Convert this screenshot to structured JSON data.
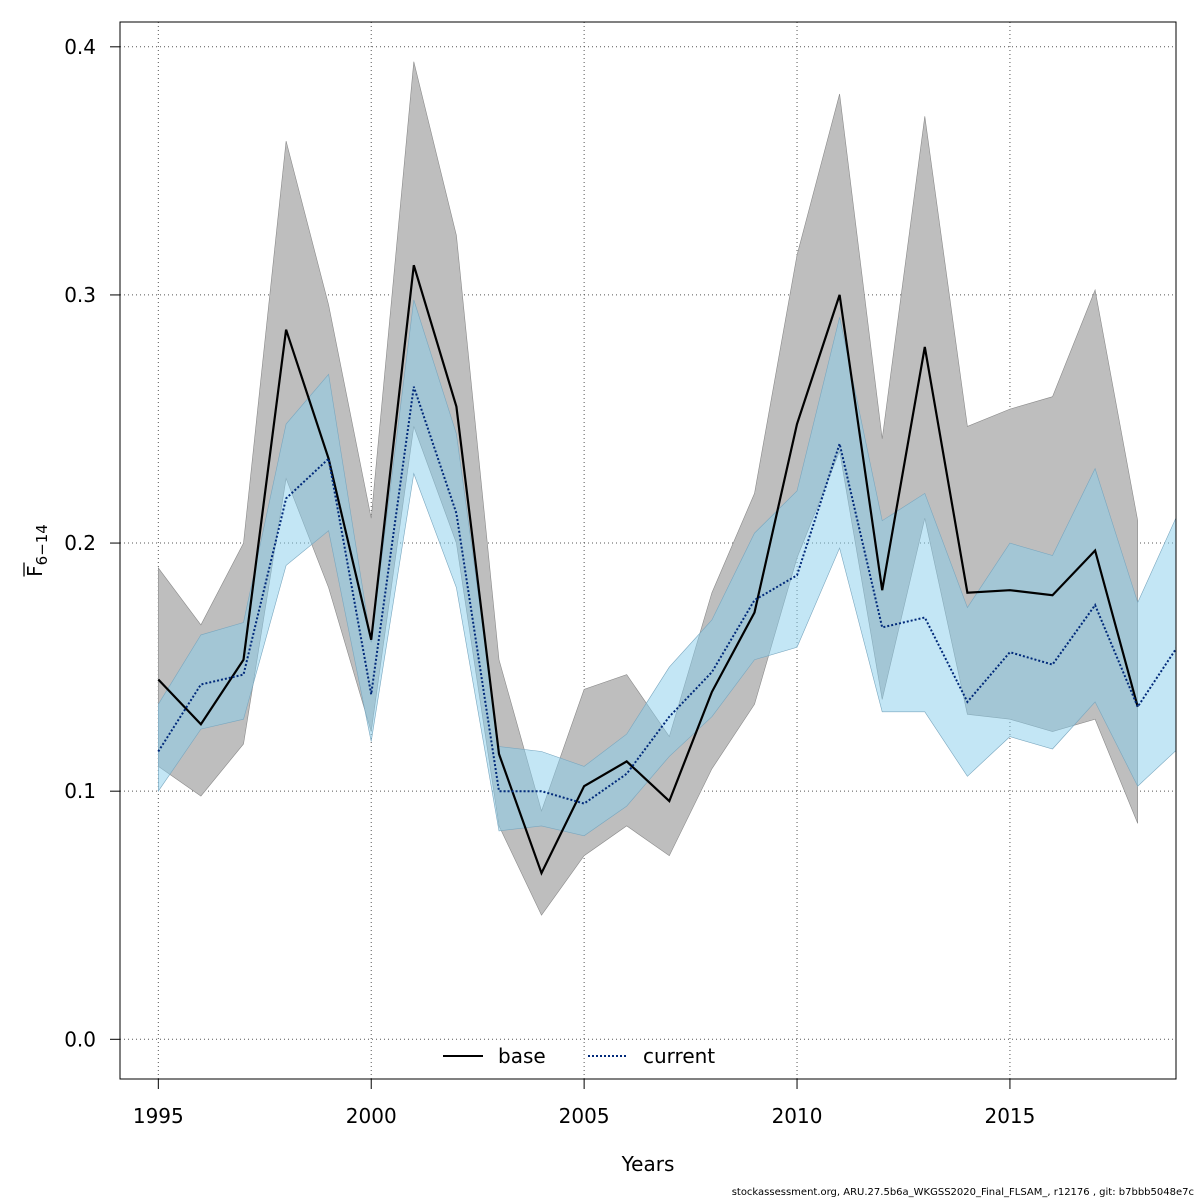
{
  "chart_data": {
    "type": "line",
    "xlabel": "Years",
    "ylabel": "F",
    "ylabel_sub": "6−14",
    "xlim": [
      1994.1,
      2018.9
    ],
    "ylim": [
      -0.016,
      0.41
    ],
    "xticks": [
      1995,
      2000,
      2005,
      2010,
      2015
    ],
    "yticks": [
      0.0,
      0.1,
      0.2,
      0.3,
      0.4
    ],
    "ytick_labels": [
      "0.0",
      "0.1",
      "0.2",
      "0.3",
      "0.4"
    ],
    "grid": true,
    "legend_placement": "bottom-center",
    "series": [
      {
        "name": "base",
        "line_color": "#000000",
        "band_color": "#bebebe",
        "line_style": "solid",
        "x": [
          1995,
          1996,
          1997,
          1998,
          1999,
          2000,
          2001,
          2002,
          2003,
          2004,
          2005,
          2006,
          2007,
          2008,
          2009,
          2010,
          2011,
          2012,
          2013,
          2014,
          2015,
          2016,
          2017,
          2018
        ],
        "values": [
          0.145,
          0.127,
          0.153,
          0.286,
          0.234,
          0.161,
          0.312,
          0.255,
          0.115,
          0.067,
          0.102,
          0.112,
          0.096,
          0.14,
          0.172,
          0.248,
          0.3,
          0.181,
          0.279,
          0.18,
          0.181,
          0.179,
          0.197,
          0.134
        ],
        "upper": [
          0.19,
          0.167,
          0.2,
          0.362,
          0.296,
          0.21,
          0.394,
          0.324,
          0.153,
          0.092,
          0.141,
          0.147,
          0.122,
          0.18,
          0.22,
          0.316,
          0.381,
          0.242,
          0.372,
          0.247,
          0.254,
          0.259,
          0.302,
          0.209
        ],
        "lower": [
          0.11,
          0.098,
          0.119,
          0.226,
          0.182,
          0.124,
          0.247,
          0.2,
          0.086,
          0.05,
          0.074,
          0.086,
          0.074,
          0.109,
          0.135,
          0.194,
          0.237,
          0.137,
          0.21,
          0.131,
          0.129,
          0.124,
          0.129,
          0.087
        ]
      },
      {
        "name": "current",
        "line_color": "#00297a",
        "band_color": "#87ceeb",
        "line_style": "dotted",
        "x": [
          1995,
          1996,
          1997,
          1998,
          1999,
          2000,
          2001,
          2002,
          2003,
          2004,
          2005,
          2006,
          2007,
          2008,
          2009,
          2010,
          2011,
          2012,
          2013,
          2014,
          2015,
          2016,
          2017,
          2018,
          2019
        ],
        "values": [
          0.116,
          0.143,
          0.147,
          0.218,
          0.234,
          0.139,
          0.263,
          0.212,
          0.1,
          0.1,
          0.095,
          0.107,
          0.13,
          0.148,
          0.177,
          0.187,
          0.24,
          0.166,
          0.17,
          0.136,
          0.156,
          0.151,
          0.175,
          0.134,
          0.16
        ],
        "upper": [
          0.135,
          0.163,
          0.168,
          0.248,
          0.268,
          0.16,
          0.298,
          0.244,
          0.118,
          0.116,
          0.11,
          0.123,
          0.15,
          0.169,
          0.204,
          0.221,
          0.291,
          0.209,
          0.22,
          0.174,
          0.2,
          0.195,
          0.23,
          0.176,
          0.214
        ],
        "lower": [
          0.1,
          0.125,
          0.129,
          0.191,
          0.205,
          0.12,
          0.228,
          0.182,
          0.084,
          0.086,
          0.082,
          0.094,
          0.114,
          0.13,
          0.153,
          0.158,
          0.198,
          0.132,
          0.132,
          0.106,
          0.122,
          0.117,
          0.136,
          0.102,
          0.118
        ]
      }
    ]
  },
  "footer": "stockassessment.org, ARU.27.5b6a_WKGSS2020_Final_FLSAM_, r12176 , git: b7bbb5048e7c"
}
